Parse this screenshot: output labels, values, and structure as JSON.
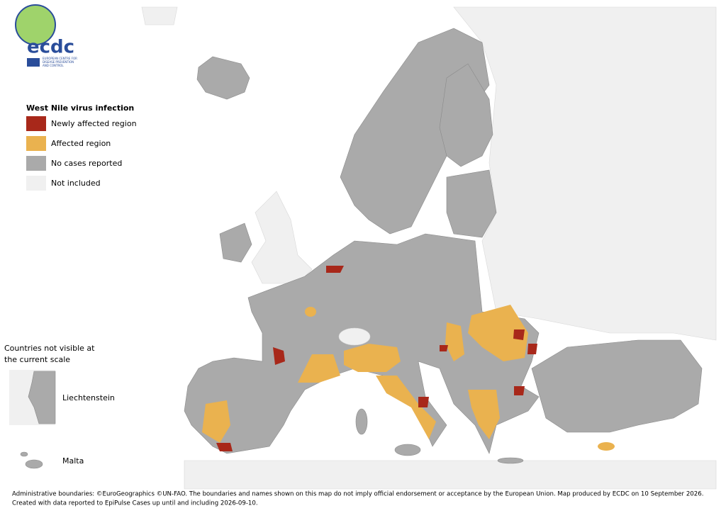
{
  "logo": {
    "name": "ecdc",
    "subtitle": [
      "EUROPEAN CENTRE FOR",
      "DISEASE PREVENTION",
      "AND CONTROL"
    ]
  },
  "legend": {
    "title": "West Nile virus infection",
    "items": [
      {
        "label": "Newly affected region",
        "color": "#a8281a"
      },
      {
        "label": "Affected region",
        "color": "#eab24f"
      },
      {
        "label": "No cases reported",
        "color": "#aaaaaa"
      },
      {
        "label": "Not included",
        "color": "#f0f0f0"
      }
    ]
  },
  "inset": {
    "title": [
      "Countries not visible at",
      "the current scale"
    ],
    "items": [
      "Liechtenstein",
      "Malta"
    ]
  },
  "footer": {
    "lines": [
      "Administrative boundaries: ©EuroGeographics ©UN-FAO. The boundaries and names shown on this map do not imply official endorsement or acceptance by the European Union. Map produced by ECDC on 10 September 2026.",
      "Created with data reported to EpiPulse Cases up until and including 2026-09-10."
    ]
  }
}
